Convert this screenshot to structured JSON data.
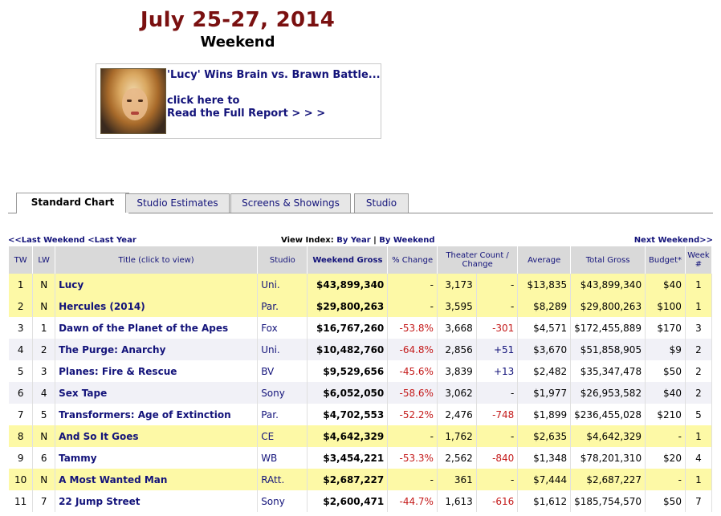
{
  "header": {
    "date": "July 25-27, 2014",
    "subtitle": "Weekend"
  },
  "report": {
    "title": "'Lucy' Wins Brain vs. Brawn Battle...",
    "link1": "click here to",
    "link2": "Read the Full Report > > >"
  },
  "tabs": [
    {
      "label": "Standard Chart",
      "active": true
    },
    {
      "label": "Studio Estimates",
      "active": false
    },
    {
      "label": "Screens & Showings",
      "active": false
    },
    {
      "label": "Studio",
      "active": false
    }
  ],
  "nav": {
    "left": "<<Last Weekend <Last Year",
    "view_label": "View Index:",
    "by_year": "By Year",
    "sep": "|",
    "by_weekend": "By Weekend",
    "right": "Next Weekend>>"
  },
  "columns": {
    "tw": "TW",
    "lw": "LW",
    "title": "Title (click to view)",
    "studio": "Studio",
    "gross": "Weekend Gross",
    "pct": "% Change",
    "theater": "Theater Count / Change",
    "avg": "Average",
    "total": "Total Gross",
    "budget": "Budget*",
    "week": "Week #"
  },
  "rows": [
    {
      "tw": "1",
      "lw": "N",
      "title": "Lucy",
      "studio": "Uni.",
      "gross": "$43,899,340",
      "pct": "-",
      "theaters": "3,173",
      "tchange": "-",
      "avg": "$13,835",
      "total": "$43,899,340",
      "budget": "$40",
      "week": "1",
      "style": "yellow"
    },
    {
      "tw": "2",
      "lw": "N",
      "title": "Hercules (2014)",
      "studio": "Par.",
      "gross": "$29,800,263",
      "pct": "-",
      "theaters": "3,595",
      "tchange": "-",
      "avg": "$8,289",
      "total": "$29,800,263",
      "budget": "$100",
      "week": "1",
      "style": "yellow"
    },
    {
      "tw": "3",
      "lw": "1",
      "title": "Dawn of the Planet of the Apes",
      "studio": "Fox",
      "gross": "$16,767,260",
      "pct": "-53.8%",
      "theaters": "3,668",
      "tchange": "-301",
      "avg": "$4,571",
      "total": "$172,455,889",
      "budget": "$170",
      "week": "3",
      "style": "plain"
    },
    {
      "tw": "4",
      "lw": "2",
      "title": "The Purge: Anarchy",
      "studio": "Uni.",
      "gross": "$10,482,760",
      "pct": "-64.8%",
      "theaters": "2,856",
      "tchange": "+51",
      "avg": "$3,670",
      "total": "$51,858,905",
      "budget": "$9",
      "week": "2",
      "style": "tint"
    },
    {
      "tw": "5",
      "lw": "3",
      "title": "Planes: Fire & Rescue",
      "studio": "BV",
      "gross": "$9,529,656",
      "pct": "-45.6%",
      "theaters": "3,839",
      "tchange": "+13",
      "avg": "$2,482",
      "total": "$35,347,478",
      "budget": "$50",
      "week": "2",
      "style": "plain"
    },
    {
      "tw": "6",
      "lw": "4",
      "title": "Sex Tape",
      "studio": "Sony",
      "gross": "$6,052,050",
      "pct": "-58.6%",
      "theaters": "3,062",
      "tchange": "-",
      "avg": "$1,977",
      "total": "$26,953,582",
      "budget": "$40",
      "week": "2",
      "style": "tint"
    },
    {
      "tw": "7",
      "lw": "5",
      "title": "Transformers: Age of Extinction",
      "studio": "Par.",
      "gross": "$4,702,553",
      "pct": "-52.2%",
      "theaters": "2,476",
      "tchange": "-748",
      "avg": "$1,899",
      "total": "$236,455,028",
      "budget": "$210",
      "week": "5",
      "style": "plain"
    },
    {
      "tw": "8",
      "lw": "N",
      "title": "And So It Goes",
      "studio": "CE",
      "gross": "$4,642,329",
      "pct": "-",
      "theaters": "1,762",
      "tchange": "-",
      "avg": "$2,635",
      "total": "$4,642,329",
      "budget": "-",
      "week": "1",
      "style": "yellow"
    },
    {
      "tw": "9",
      "lw": "6",
      "title": "Tammy",
      "studio": "WB",
      "gross": "$3,454,221",
      "pct": "-53.3%",
      "theaters": "2,562",
      "tchange": "-840",
      "avg": "$1,348",
      "total": "$78,201,310",
      "budget": "$20",
      "week": "4",
      "style": "plain"
    },
    {
      "tw": "10",
      "lw": "N",
      "title": "A Most Wanted Man",
      "studio": "RAtt.",
      "gross": "$2,687,227",
      "pct": "-",
      "theaters": "361",
      "tchange": "-",
      "avg": "$7,444",
      "total": "$2,687,227",
      "budget": "-",
      "week": "1",
      "style": "yellow"
    },
    {
      "tw": "11",
      "lw": "7",
      "title": "22 Jump Street",
      "studio": "Sony",
      "gross": "$2,600,471",
      "pct": "-44.7%",
      "theaters": "1,613",
      "tchange": "-616",
      "avg": "$1,612",
      "total": "$185,754,570",
      "budget": "$50",
      "week": "7",
      "style": "plain"
    }
  ]
}
